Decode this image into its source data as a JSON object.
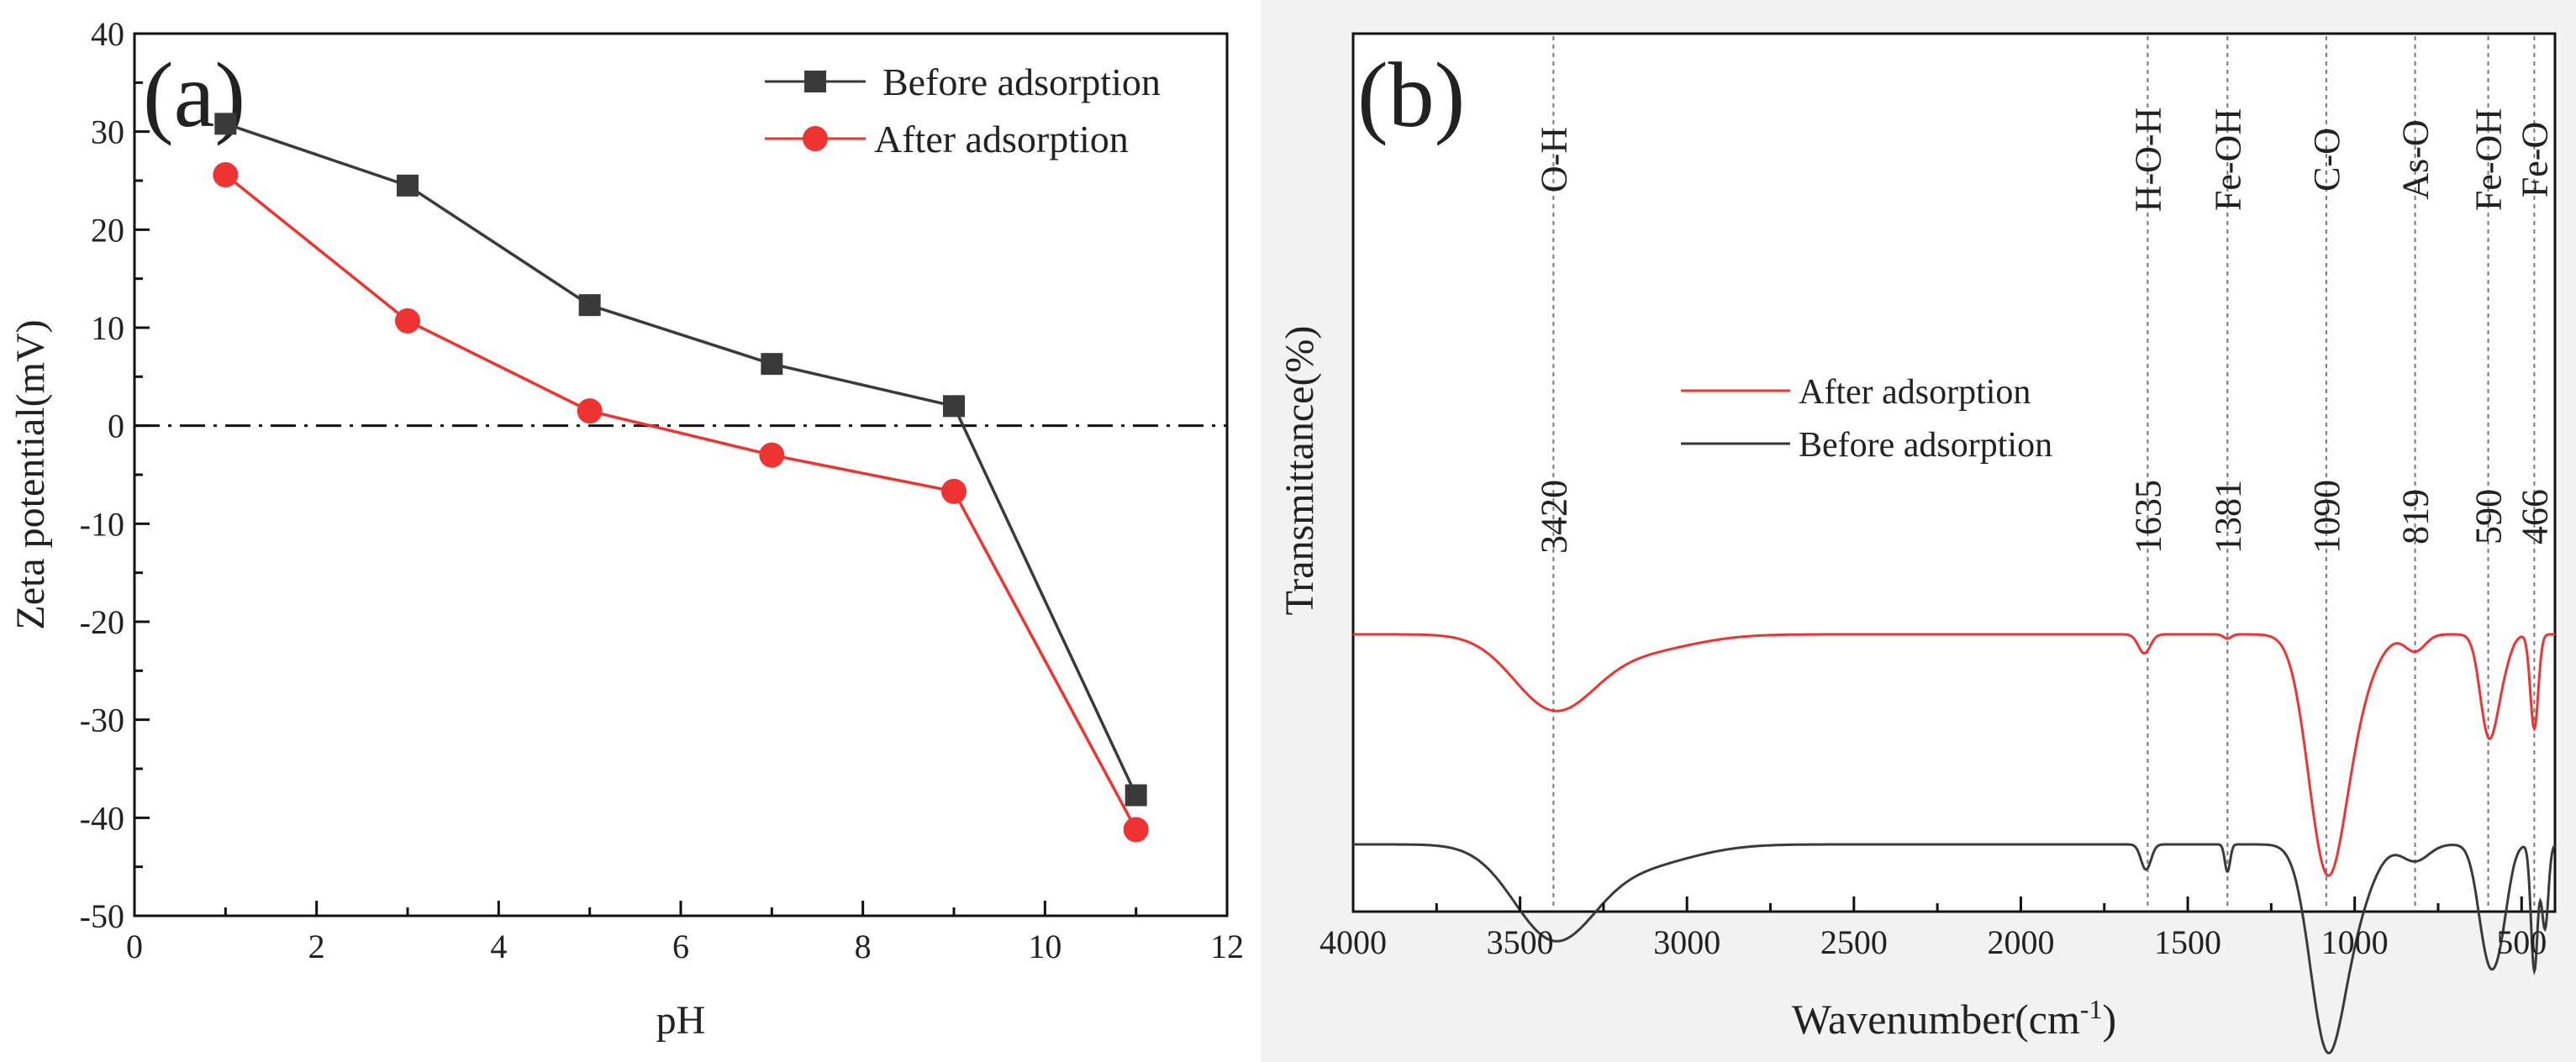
{
  "colors": {
    "before": "#3a3a3a",
    "after": "#ee3333",
    "axis": "#111111",
    "panel_b_background": "#f2f2f2",
    "guide": "#777777"
  },
  "chart_data": [
    {
      "type": "line",
      "panel_label": "(a)",
      "xlabel": "pH",
      "ylabel": "Zeta potential(mV)",
      "xlim": [
        0,
        12
      ],
      "ylim": [
        -50,
        40
      ],
      "x_ticks": [
        0,
        2,
        4,
        6,
        8,
        10,
        12
      ],
      "y_ticks": [
        -50,
        -40,
        -30,
        -20,
        -10,
        0,
        10,
        20,
        30,
        40
      ],
      "x_tick_labels": [
        "0",
        "2",
        "4",
        "6",
        "8",
        "10",
        "12"
      ],
      "y_tick_labels": [
        "-50",
        "-40",
        "-30",
        "-20",
        "-10",
        "0",
        "10",
        "20",
        "30",
        "40"
      ],
      "zero_reference_line": 0,
      "legend_position": "top-right",
      "series": [
        {
          "name": "Before adsorption",
          "color": "#3a3a3a",
          "marker": "square",
          "x": [
            1,
            3,
            5,
            7,
            9,
            11
          ],
          "y": [
            30.8,
            24.5,
            12.3,
            6.3,
            2.0,
            -37.7
          ]
        },
        {
          "name": "After adsorption",
          "color": "#ee3333",
          "marker": "circle",
          "x": [
            1,
            3,
            5,
            7,
            9,
            11
          ],
          "y": [
            25.6,
            10.7,
            1.5,
            -3.0,
            -6.7,
            -41.2
          ]
        }
      ]
    },
    {
      "type": "line",
      "panel_label": "(b)",
      "xlabel": "Wavenumber(cm",
      "xlabel_superscript": "-1",
      "xlabel_suffix": ")",
      "ylabel": "Transmittance(%)",
      "xlim": [
        4000,
        400
      ],
      "x_reversed": true,
      "x_ticks": [
        4000,
        3500,
        3000,
        2500,
        2000,
        1500,
        1000,
        500
      ],
      "x_tick_labels": [
        "4000",
        "3500",
        "3000",
        "2500",
        "2000",
        "1500",
        "1000",
        "500"
      ],
      "y_units": "relative transmittance (no numeric axis), baselines offset",
      "legend_position": "center-left",
      "reference_lines": [
        {
          "wavenumber": 3400,
          "bond": "O-H",
          "value_label": "3420"
        },
        {
          "wavenumber": 1620,
          "bond": "H-O-H",
          "value_label": "1635"
        },
        {
          "wavenumber": 1381,
          "bond": "Fe-OH",
          "value_label": "1381"
        },
        {
          "wavenumber": 1085,
          "bond": "C-O",
          "value_label": "1090"
        },
        {
          "wavenumber": 819,
          "bond": "As-O",
          "value_label": "819"
        },
        {
          "wavenumber": 600,
          "bond": "Fe-OH",
          "value_label": "590"
        },
        {
          "wavenumber": 462,
          "bond": "Fe-O",
          "value_label": "466"
        }
      ],
      "series": [
        {
          "name": "After adsorption",
          "color": "#ee3333",
          "baseline": 1.0,
          "peaks": [
            {
              "center": 3400,
              "width": 120,
              "depth": 0.34
            },
            {
              "center": 3150,
              "width": 160,
              "depth": 0.08
            },
            {
              "center": 1630,
              "width": 18,
              "depth": 0.09
            },
            {
              "center": 1381,
              "width": 12,
              "depth": 0.02
            },
            {
              "center": 1085,
              "width": 55,
              "depth": 1.05
            },
            {
              "center": 1000,
              "width": 60,
              "depth": 0.25
            },
            {
              "center": 819,
              "width": 30,
              "depth": 0.08
            },
            {
              "center": 600,
              "width": 25,
              "depth": 0.45
            },
            {
              "center": 560,
              "width": 25,
              "depth": 0.15
            },
            {
              "center": 462,
              "width": 12,
              "depth": 0.45
            }
          ]
        },
        {
          "name": "Before adsorption",
          "color": "#3a3a3a",
          "baseline": 0.0,
          "peaks": [
            {
              "center": 3400,
              "width": 120,
              "depth": 0.43
            },
            {
              "center": 3150,
              "width": 160,
              "depth": 0.1
            },
            {
              "center": 1625,
              "width": 15,
              "depth": 0.12
            },
            {
              "center": 1381,
              "width": 8,
              "depth": 0.13
            },
            {
              "center": 1085,
              "width": 50,
              "depth": 0.9
            },
            {
              "center": 1000,
              "width": 55,
              "depth": 0.28
            },
            {
              "center": 819,
              "width": 40,
              "depth": 0.08
            },
            {
              "center": 600,
              "width": 30,
              "depth": 0.5
            },
            {
              "center": 560,
              "width": 25,
              "depth": 0.25
            },
            {
              "center": 462,
              "width": 10,
              "depth": 0.6
            },
            {
              "center": 430,
              "width": 10,
              "depth": 0.4
            }
          ]
        }
      ]
    }
  ]
}
